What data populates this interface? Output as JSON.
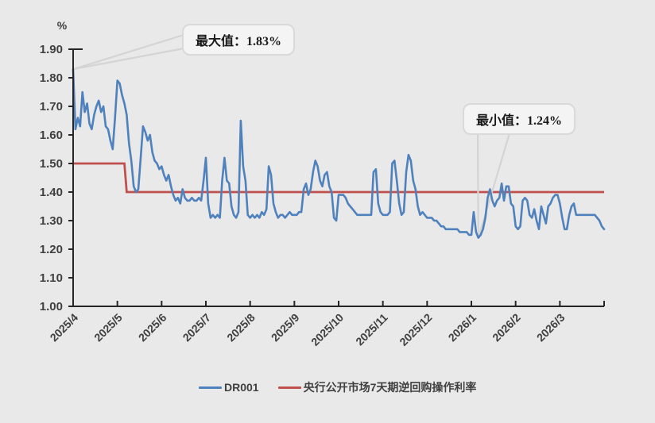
{
  "colors": {
    "background": "#e9e9e9",
    "series_dr001": "#4f81bd",
    "series_policy": "#c0504d",
    "axis_line": "#262626",
    "axis_text": "#404040",
    "leader_line": "#d4d4d4",
    "callout_border": "#d9d9d9",
    "callout_background": "#f4f4f4"
  },
  "y_axis": {
    "unit_label": "%"
  },
  "annotations": {
    "max": {
      "label": "最大值：1.83%",
      "value": 1.83
    },
    "min": {
      "label": "最小值：1.24%",
      "value": 1.24
    }
  },
  "legend": {
    "items": [
      {
        "name": "dr001",
        "label": "DR001",
        "color": "#4f81bd"
      },
      {
        "name": "policy-rate",
        "label": "央行公开市场7天期逆回购操作利率",
        "color": "#c0504d"
      }
    ]
  },
  "chart_data": {
    "type": "line",
    "title": "",
    "xlabel": "",
    "ylabel": "%",
    "ylim": [
      1.0,
      1.9
    ],
    "y_tick_step": 0.1,
    "y_tick_labels": [
      "1.00",
      "1.10",
      "1.20",
      "1.30",
      "1.40",
      "1.50",
      "1.60",
      "1.70",
      "1.80",
      "1.90"
    ],
    "x_tick_labels": [
      "2025/4",
      "2025/5",
      "2025/6",
      "2025/7",
      "2025/8",
      "2025/9",
      "2025/10",
      "2025/11",
      "2025/12",
      "2026/1",
      "2026/2",
      "2026/3"
    ],
    "grid": false,
    "legend_position": "bottom",
    "max_point": {
      "label": "最大值：1.83%",
      "value": 1.83
    },
    "min_point": {
      "label": "最小值：1.24%",
      "value": 1.24
    },
    "series": [
      {
        "name": "DR001",
        "color": "#4f81bd",
        "values": [
          1.83,
          1.62,
          1.66,
          1.63,
          1.75,
          1.68,
          1.71,
          1.64,
          1.62,
          1.67,
          1.7,
          1.72,
          1.68,
          1.7,
          1.63,
          1.62,
          1.58,
          1.55,
          1.66,
          1.79,
          1.78,
          1.74,
          1.71,
          1.67,
          1.57,
          1.51,
          1.42,
          1.4,
          1.41,
          1.52,
          1.63,
          1.61,
          1.58,
          1.6,
          1.54,
          1.51,
          1.5,
          1.48,
          1.49,
          1.46,
          1.44,
          1.46,
          1.42,
          1.39,
          1.37,
          1.38,
          1.36,
          1.41,
          1.38,
          1.37,
          1.37,
          1.38,
          1.37,
          1.37,
          1.38,
          1.37,
          1.44,
          1.52,
          1.36,
          1.31,
          1.32,
          1.31,
          1.32,
          1.31,
          1.44,
          1.52,
          1.44,
          1.43,
          1.35,
          1.32,
          1.31,
          1.33,
          1.65,
          1.49,
          1.44,
          1.32,
          1.31,
          1.32,
          1.31,
          1.32,
          1.31,
          1.33,
          1.32,
          1.34,
          1.49,
          1.46,
          1.36,
          1.33,
          1.31,
          1.32,
          1.32,
          1.31,
          1.32,
          1.33,
          1.32,
          1.32,
          1.32,
          1.33,
          1.33,
          1.41,
          1.43,
          1.39,
          1.41,
          1.47,
          1.51,
          1.49,
          1.44,
          1.42,
          1.46,
          1.47,
          1.42,
          1.4,
          1.31,
          1.3,
          1.39,
          1.39,
          1.39,
          1.38,
          1.36,
          1.35,
          1.34,
          1.33,
          1.32,
          1.32,
          1.32,
          1.32,
          1.32,
          1.32,
          1.32,
          1.47,
          1.48,
          1.36,
          1.33,
          1.32,
          1.32,
          1.32,
          1.33,
          1.5,
          1.51,
          1.44,
          1.36,
          1.32,
          1.33,
          1.47,
          1.53,
          1.51,
          1.44,
          1.41,
          1.35,
          1.32,
          1.33,
          1.32,
          1.31,
          1.31,
          1.31,
          1.3,
          1.3,
          1.29,
          1.28,
          1.28,
          1.27,
          1.27,
          1.27,
          1.27,
          1.27,
          1.27,
          1.26,
          1.26,
          1.26,
          1.26,
          1.25,
          1.25,
          1.33,
          1.26,
          1.24,
          1.25,
          1.27,
          1.31,
          1.38,
          1.41,
          1.37,
          1.35,
          1.37,
          1.38,
          1.43,
          1.37,
          1.42,
          1.42,
          1.36,
          1.35,
          1.28,
          1.27,
          1.28,
          1.37,
          1.38,
          1.37,
          1.32,
          1.31,
          1.34,
          1.3,
          1.27,
          1.35,
          1.32,
          1.29,
          1.35,
          1.36,
          1.38,
          1.39,
          1.39,
          1.36,
          1.31,
          1.27,
          1.27,
          1.32,
          1.35,
          1.36,
          1.32,
          1.32,
          1.32,
          1.32,
          1.32,
          1.32,
          1.32,
          1.32,
          1.32,
          1.31,
          1.3,
          1.28,
          1.27
        ]
      },
      {
        "name": "央行公开市场7天期逆回购操作利率",
        "color": "#c0504d",
        "step": {
          "before": 1.5,
          "after": 1.4,
          "step_index": 23
        }
      }
    ]
  }
}
